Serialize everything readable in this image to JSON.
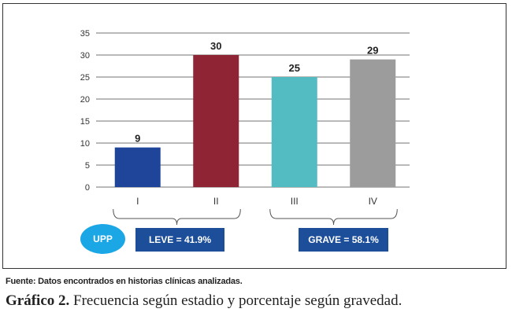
{
  "chart_data": {
    "type": "bar",
    "categories": [
      "I",
      "II",
      "III",
      "IV"
    ],
    "values": [
      9,
      30,
      25,
      29
    ],
    "colors": [
      "#1e459a",
      "#8e2434",
      "#52bcc2",
      "#9c9c9c"
    ],
    "ylim": [
      0,
      35
    ],
    "yticks": [
      0,
      5,
      10,
      15,
      20,
      25,
      30,
      35
    ],
    "grid": true,
    "data_labels": [
      "9",
      "30",
      "25",
      "29"
    ]
  },
  "badge": {
    "label": "UPP",
    "color": "#1ba7e6"
  },
  "groups": [
    {
      "label": "LEVE = 41.9%",
      "categories": [
        "I",
        "II"
      ]
    },
    {
      "label": "GRAVE = 58.1%",
      "categories": [
        "III",
        "IV"
      ]
    }
  ],
  "source_note": "Fuente: Datos encontrados en historias clínicas analizadas.",
  "caption": {
    "label": "Gráfico 2.",
    "text": " Frecuencia según estadio y porcentaje según gravedad."
  }
}
